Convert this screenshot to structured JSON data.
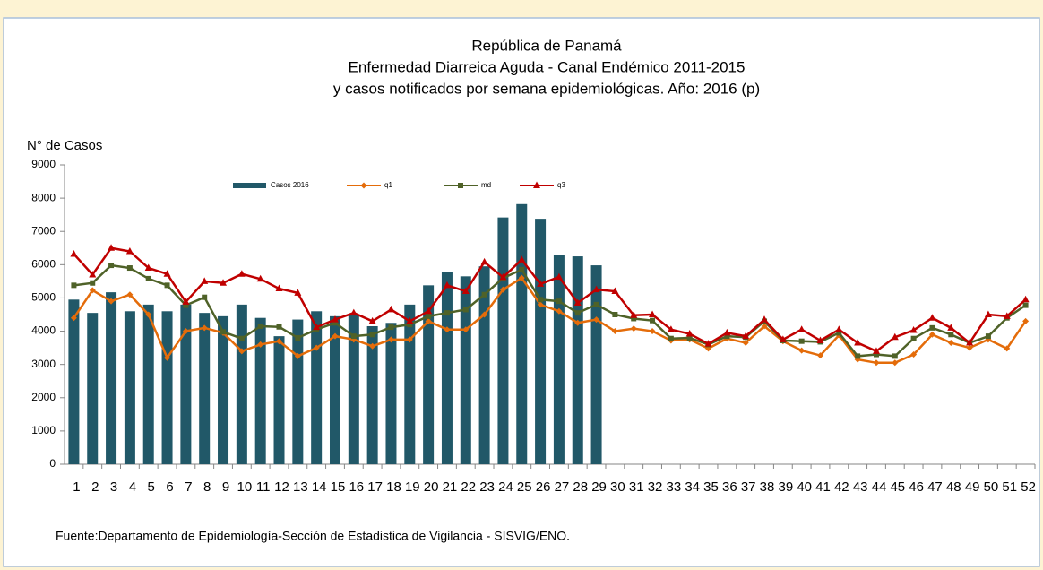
{
  "chart_data": {
    "type": "bar-line",
    "title": "República de Panamá",
    "subtitle": [
      "Enfermedad Diarreica Aguda - Canal Endémico 2011-2015",
      "y casos notificados por semana epidemiológicas.  Año: 2016 (p)"
    ],
    "y_label": "N° de Casos",
    "source": "Fuente:Departamento de Epidemiología-Sección de Estadistica de Vigilancia - SISVIG/ENO.",
    "categories": [
      1,
      2,
      3,
      4,
      5,
      6,
      7,
      8,
      9,
      10,
      11,
      12,
      13,
      14,
      15,
      16,
      17,
      18,
      19,
      20,
      21,
      22,
      23,
      24,
      25,
      26,
      27,
      28,
      29,
      30,
      31,
      32,
      33,
      34,
      35,
      36,
      37,
      38,
      39,
      40,
      41,
      42,
      43,
      44,
      45,
      46,
      47,
      48,
      49,
      50,
      51,
      52
    ],
    "ylim": [
      0,
      9000
    ],
    "yticks": [
      0,
      1000,
      2000,
      3000,
      4000,
      5000,
      6000,
      7000,
      8000,
      9000
    ],
    "grid": false,
    "series": [
      {
        "name": "Casos 2016",
        "kind": "bar",
        "color": "#215868",
        "values": [
          4950,
          4550,
          5170,
          4600,
          4800,
          4600,
          4800,
          4550,
          4450,
          4800,
          4400,
          3850,
          4350,
          4600,
          4450,
          4500,
          4150,
          4250,
          4800,
          5380,
          5780,
          5650,
          5950,
          7420,
          7820,
          7380,
          6300,
          6250,
          5980,
          null,
          null,
          null,
          null,
          null,
          null,
          null,
          null,
          null,
          null,
          null,
          null,
          null,
          null,
          null,
          null,
          null,
          null,
          null,
          null,
          null,
          null,
          null
        ]
      },
      {
        "name": "q1",
        "kind": "line",
        "marker": "diamond",
        "color": "#e46c0a",
        "values": [
          4400,
          5230,
          4900,
          5100,
          4500,
          3200,
          4000,
          4100,
          3950,
          3400,
          3600,
          3700,
          3250,
          3500,
          3850,
          3750,
          3550,
          3750,
          3750,
          4300,
          4050,
          4050,
          4500,
          5250,
          5600,
          4800,
          4600,
          4250,
          4350,
          4000,
          4080,
          4000,
          3720,
          3750,
          3480,
          3780,
          3650,
          4150,
          3700,
          3420,
          3270,
          3880,
          3150,
          3050,
          3050,
          3300,
          3900,
          3650,
          3500,
          3750,
          3480,
          4300
        ]
      },
      {
        "name": "md",
        "kind": "line",
        "marker": "square",
        "color": "#4f6228",
        "values": [
          5380,
          5450,
          5980,
          5900,
          5580,
          5380,
          4780,
          5020,
          3980,
          3780,
          4150,
          4130,
          3800,
          4050,
          4250,
          3850,
          3900,
          4120,
          4200,
          4450,
          4550,
          4650,
          5100,
          5600,
          5850,
          4950,
          4900,
          4550,
          4800,
          4500,
          4380,
          4320,
          3780,
          3800,
          3600,
          3850,
          3820,
          4300,
          3720,
          3700,
          3680,
          3950,
          3250,
          3300,
          3250,
          3780,
          4100,
          3900,
          3650,
          3850,
          4400,
          4780
        ]
      },
      {
        "name": "q3",
        "kind": "line",
        "marker": "triangle",
        "color": "#c00000",
        "values": [
          6320,
          5700,
          6500,
          6400,
          5900,
          5720,
          4880,
          5500,
          5450,
          5720,
          5570,
          5280,
          5150,
          4120,
          4350,
          4550,
          4300,
          4650,
          4300,
          4600,
          5380,
          5200,
          6080,
          5620,
          6150,
          5420,
          5630,
          4850,
          5250,
          5200,
          4480,
          4500,
          4050,
          3920,
          3620,
          3950,
          3850,
          4350,
          3750,
          4050,
          3720,
          4050,
          3650,
          3400,
          3820,
          4030,
          4400,
          4100,
          3650,
          4500,
          4450,
          4950
        ]
      }
    ]
  }
}
